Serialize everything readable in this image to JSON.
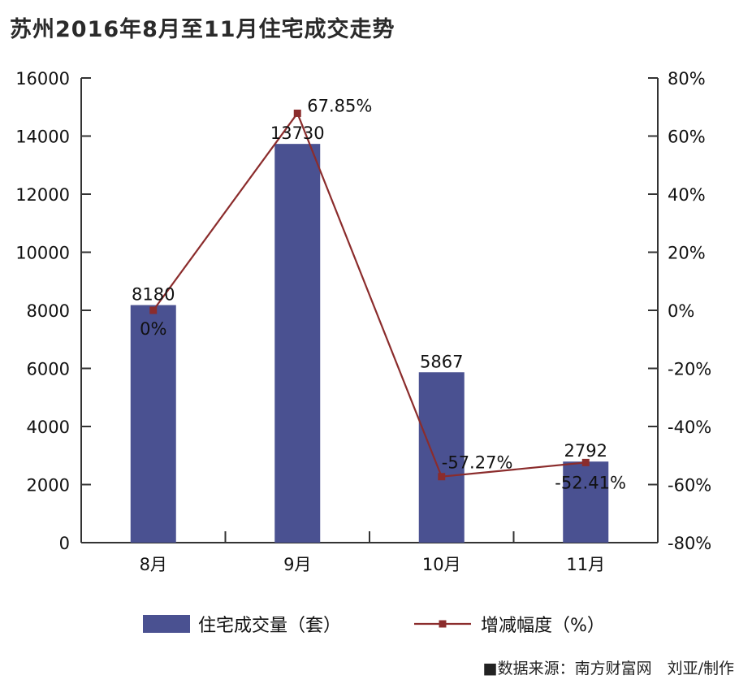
{
  "chart_data": {
    "type": "bar",
    "title": "苏州2016年8月至11月住宅成交走势",
    "categories": [
      "8月",
      "9月",
      "10月",
      "11月"
    ],
    "series": [
      {
        "name": "住宅成交量（套）",
        "kind": "bar",
        "axis": "left",
        "color": "#4a5191",
        "values": [
          8180,
          13730,
          5867,
          2792
        ],
        "labels": [
          "8180",
          "13730",
          "5867",
          "2792"
        ]
      },
      {
        "name": "增减幅度（%）",
        "kind": "line",
        "axis": "right",
        "color": "#8b2c2c",
        "values": [
          0,
          67.85,
          -57.27,
          -52.41
        ],
        "labels": [
          "0%",
          "67.85%",
          "-57.27%",
          "-52.41%"
        ]
      }
    ],
    "left_axis": {
      "ylim": [
        0,
        16000
      ],
      "ticks": [
        0,
        2000,
        4000,
        6000,
        8000,
        10000,
        12000,
        14000,
        16000
      ],
      "tick_labels": [
        "0",
        "2000",
        "4000",
        "6000",
        "8000",
        "10000",
        "12000",
        "14000",
        "16000"
      ]
    },
    "right_axis": {
      "ylim": [
        -80,
        80
      ],
      "ticks": [
        -80,
        -60,
        -40,
        -20,
        0,
        20,
        40,
        60,
        80
      ],
      "tick_labels": [
        "-80%",
        "-60%",
        "-40%",
        "-20%",
        "0%",
        "20%",
        "40%",
        "60%",
        "80%"
      ]
    },
    "grid": false,
    "legend_position": "bottom"
  },
  "source_note": "■数据来源：南方财富网　刘亚/制作"
}
